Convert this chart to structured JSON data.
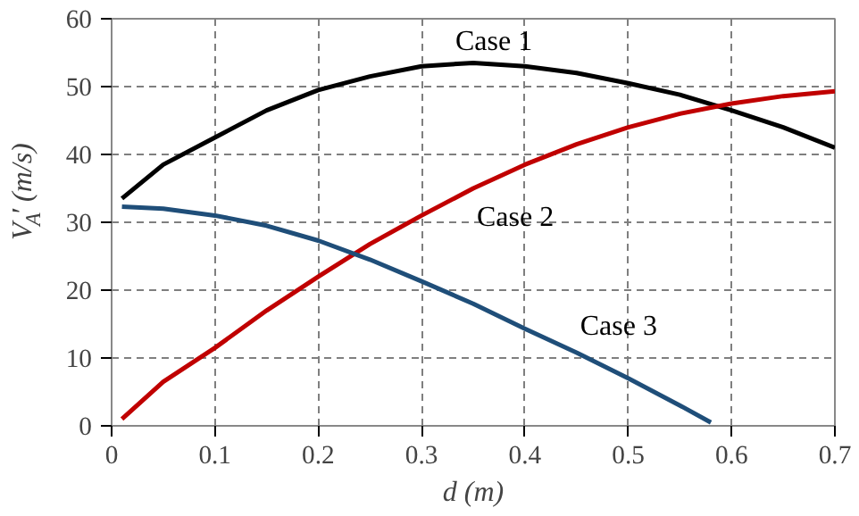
{
  "chart_data": {
    "type": "line",
    "xlabel": "d (m)",
    "ylabel": "V$_{A}$′ (m/s)",
    "x": [
      0.01,
      0.05,
      0.1,
      0.15,
      0.2,
      0.25,
      0.3,
      0.35,
      0.4,
      0.45,
      0.5,
      0.55,
      0.6,
      0.65,
      0.7
    ],
    "series": [
      {
        "name": "Case 1",
        "color": "#000000",
        "values": [
          33.5,
          38.5,
          42.5,
          46.5,
          49.5,
          51.5,
          53,
          53.5,
          53,
          52,
          50.5,
          48.8,
          46.5,
          44,
          41
        ]
      },
      {
        "name": "Case 2",
        "color": "#c00000",
        "values": [
          1,
          6.5,
          11.5,
          17,
          22,
          26.8,
          31,
          35,
          38.5,
          41.5,
          44,
          46,
          47.5,
          48.6,
          49.3
        ]
      },
      {
        "name": "Case 3",
        "color": "#1f4e79",
        "x": [
          0.01,
          0.05,
          0.1,
          0.15,
          0.2,
          0.25,
          0.3,
          0.35,
          0.4,
          0.45,
          0.5,
          0.55,
          0.58
        ],
        "values": [
          32.3,
          32,
          31,
          29.5,
          27.3,
          24.5,
          21.3,
          18,
          14.3,
          10.8,
          7,
          3,
          0.5
        ]
      }
    ],
    "xlim": [
      0,
      0.7
    ],
    "xticks": [
      0,
      0.1,
      0.2,
      0.3,
      0.4,
      0.5,
      0.6,
      0.7
    ],
    "ylim": [
      0,
      60
    ],
    "yticks": [
      0,
      10,
      20,
      30,
      40,
      50,
      60
    ],
    "grid": true,
    "marker": "none",
    "line_style": "solid"
  }
}
